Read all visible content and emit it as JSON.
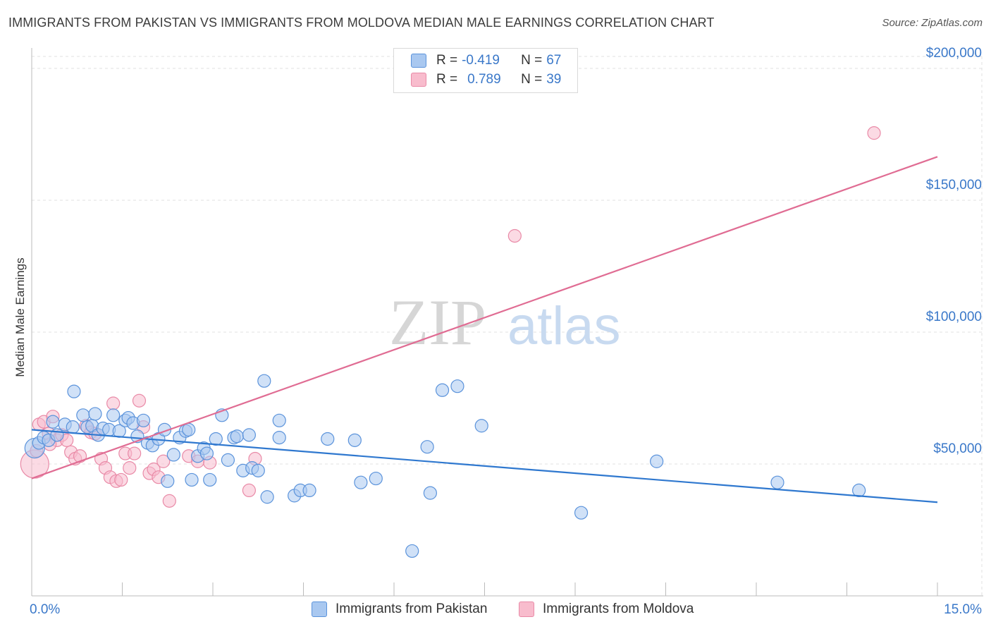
{
  "header": {
    "title": "IMMIGRANTS FROM PAKISTAN VS IMMIGRANTS FROM MOLDOVA MEDIAN MALE EARNINGS CORRELATION CHART",
    "source": "Source: ZipAtlas.com"
  },
  "watermark": {
    "zip": "ZIP",
    "atlas": "atlas"
  },
  "legend": {
    "series1": {
      "r_label": "R = ",
      "r_value": "-0.419",
      "n_label": "N = ",
      "n_value": "67"
    },
    "series2": {
      "r_label": "R = ",
      "r_value": "0.789",
      "n_label": "N = ",
      "n_value": "39"
    }
  },
  "bottom_legend": {
    "series1": "Immigrants from Pakistan",
    "series2": "Immigrants from Moldova"
  },
  "colors": {
    "pakistan_fill": "#a9c8f0",
    "pakistan_stroke": "#5b93db",
    "pakistan_line": "#2f78cf",
    "moldova_fill": "#f8bccd",
    "moldova_stroke": "#e98aa7",
    "moldova_line": "#e06c93",
    "axis_text": "#3a78c9"
  },
  "chart_data": {
    "type": "scatter",
    "title": "IMMIGRANTS FROM PAKISTAN VS IMMIGRANTS FROM MOLDOVA MEDIAN MALE EARNINGS CORRELATION CHART",
    "xlabel": "",
    "ylabel": "Median Male Earnings",
    "xlim": [
      0,
      15
    ],
    "ylim": [
      0,
      200000
    ],
    "x_tick_labels": [
      "0.0%",
      "15.0%"
    ],
    "y_ticks": [
      50000,
      100000,
      150000,
      200000
    ],
    "y_tick_labels": [
      "$50,000",
      "$100,000",
      "$150,000",
      "$200,000"
    ],
    "grid": true,
    "series": [
      {
        "name": "Immigrants from Pakistan",
        "r": -0.419,
        "n": 67,
        "trend": {
          "x": [
            0,
            15
          ],
          "y": [
            63000,
            35500
          ]
        },
        "points": [
          [
            0.05,
            56000
          ],
          [
            0.12,
            58000
          ],
          [
            0.2,
            60000
          ],
          [
            0.28,
            59000
          ],
          [
            0.35,
            66000
          ],
          [
            0.42,
            61000
          ],
          [
            0.55,
            65000
          ],
          [
            0.68,
            64000
          ],
          [
            0.7,
            77500
          ],
          [
            0.85,
            68500
          ],
          [
            0.92,
            64000
          ],
          [
            1.0,
            64500
          ],
          [
            1.05,
            69000
          ],
          [
            1.1,
            61000
          ],
          [
            1.18,
            63500
          ],
          [
            1.28,
            63000
          ],
          [
            1.35,
            68500
          ],
          [
            1.45,
            62500
          ],
          [
            1.55,
            66500
          ],
          [
            1.6,
            67500
          ],
          [
            1.68,
            65500
          ],
          [
            1.75,
            60500
          ],
          [
            1.85,
            66500
          ],
          [
            1.92,
            58000
          ],
          [
            2.0,
            57000
          ],
          [
            2.1,
            59500
          ],
          [
            2.2,
            63000
          ],
          [
            2.25,
            43500
          ],
          [
            2.35,
            53500
          ],
          [
            2.45,
            60000
          ],
          [
            2.55,
            62500
          ],
          [
            2.6,
            63000
          ],
          [
            2.65,
            44000
          ],
          [
            2.75,
            53000
          ],
          [
            2.85,
            56000
          ],
          [
            2.9,
            54000
          ],
          [
            2.95,
            44000
          ],
          [
            3.05,
            59500
          ],
          [
            3.15,
            68500
          ],
          [
            3.25,
            51500
          ],
          [
            3.35,
            60000
          ],
          [
            3.4,
            60500
          ],
          [
            3.5,
            47500
          ],
          [
            3.6,
            61000
          ],
          [
            3.65,
            48500
          ],
          [
            3.75,
            47500
          ],
          [
            3.85,
            81500
          ],
          [
            3.9,
            37500
          ],
          [
            4.1,
            60000
          ],
          [
            4.1,
            66500
          ],
          [
            4.35,
            38000
          ],
          [
            4.45,
            40000
          ],
          [
            4.6,
            40000
          ],
          [
            4.9,
            59500
          ],
          [
            5.35,
            59000
          ],
          [
            5.45,
            43000
          ],
          [
            5.7,
            44500
          ],
          [
            6.3,
            17000
          ],
          [
            6.55,
            56500
          ],
          [
            6.6,
            39000
          ],
          [
            6.8,
            78000
          ],
          [
            7.05,
            79500
          ],
          [
            7.45,
            64500
          ],
          [
            9.1,
            31500
          ],
          [
            10.35,
            51000
          ],
          [
            12.35,
            43000
          ],
          [
            13.7,
            40000
          ]
        ]
      },
      {
        "name": "Immigrants from Moldova",
        "r": 0.789,
        "n": 39,
        "trend": {
          "x": [
            0,
            15
          ],
          "y": [
            44500,
            166500
          ]
        },
        "points": [
          [
            0.05,
            50000
          ],
          [
            0.08,
            55000
          ],
          [
            0.12,
            65000
          ],
          [
            0.2,
            66000
          ],
          [
            0.28,
            61500
          ],
          [
            0.35,
            68000
          ],
          [
            0.42,
            59000
          ],
          [
            0.5,
            61000
          ],
          [
            0.58,
            59000
          ],
          [
            0.65,
            54500
          ],
          [
            0.72,
            52000
          ],
          [
            0.8,
            53000
          ],
          [
            0.9,
            64500
          ],
          [
            0.98,
            62000
          ],
          [
            1.05,
            61500
          ],
          [
            1.15,
            52000
          ],
          [
            1.22,
            48500
          ],
          [
            1.3,
            45000
          ],
          [
            1.35,
            73000
          ],
          [
            1.4,
            43500
          ],
          [
            1.48,
            44000
          ],
          [
            1.55,
            54000
          ],
          [
            1.62,
            48500
          ],
          [
            1.7,
            54000
          ],
          [
            1.78,
            74000
          ],
          [
            1.85,
            64000
          ],
          [
            1.95,
            46500
          ],
          [
            2.02,
            48000
          ],
          [
            2.1,
            45000
          ],
          [
            2.18,
            51000
          ],
          [
            2.28,
            36000
          ],
          [
            2.6,
            53000
          ],
          [
            2.75,
            51000
          ],
          [
            2.95,
            50500
          ],
          [
            3.6,
            40000
          ],
          [
            3.7,
            52000
          ],
          [
            8.0,
            136500
          ],
          [
            13.95,
            175500
          ],
          [
            0.3,
            57500
          ]
        ]
      }
    ]
  },
  "axis_labels": {
    "ylabel": "Median Male Earnings",
    "x_left": "0.0%",
    "x_right": "15.0%",
    "y_ticks": [
      "$50,000",
      "$100,000",
      "$150,000",
      "$200,000"
    ]
  }
}
